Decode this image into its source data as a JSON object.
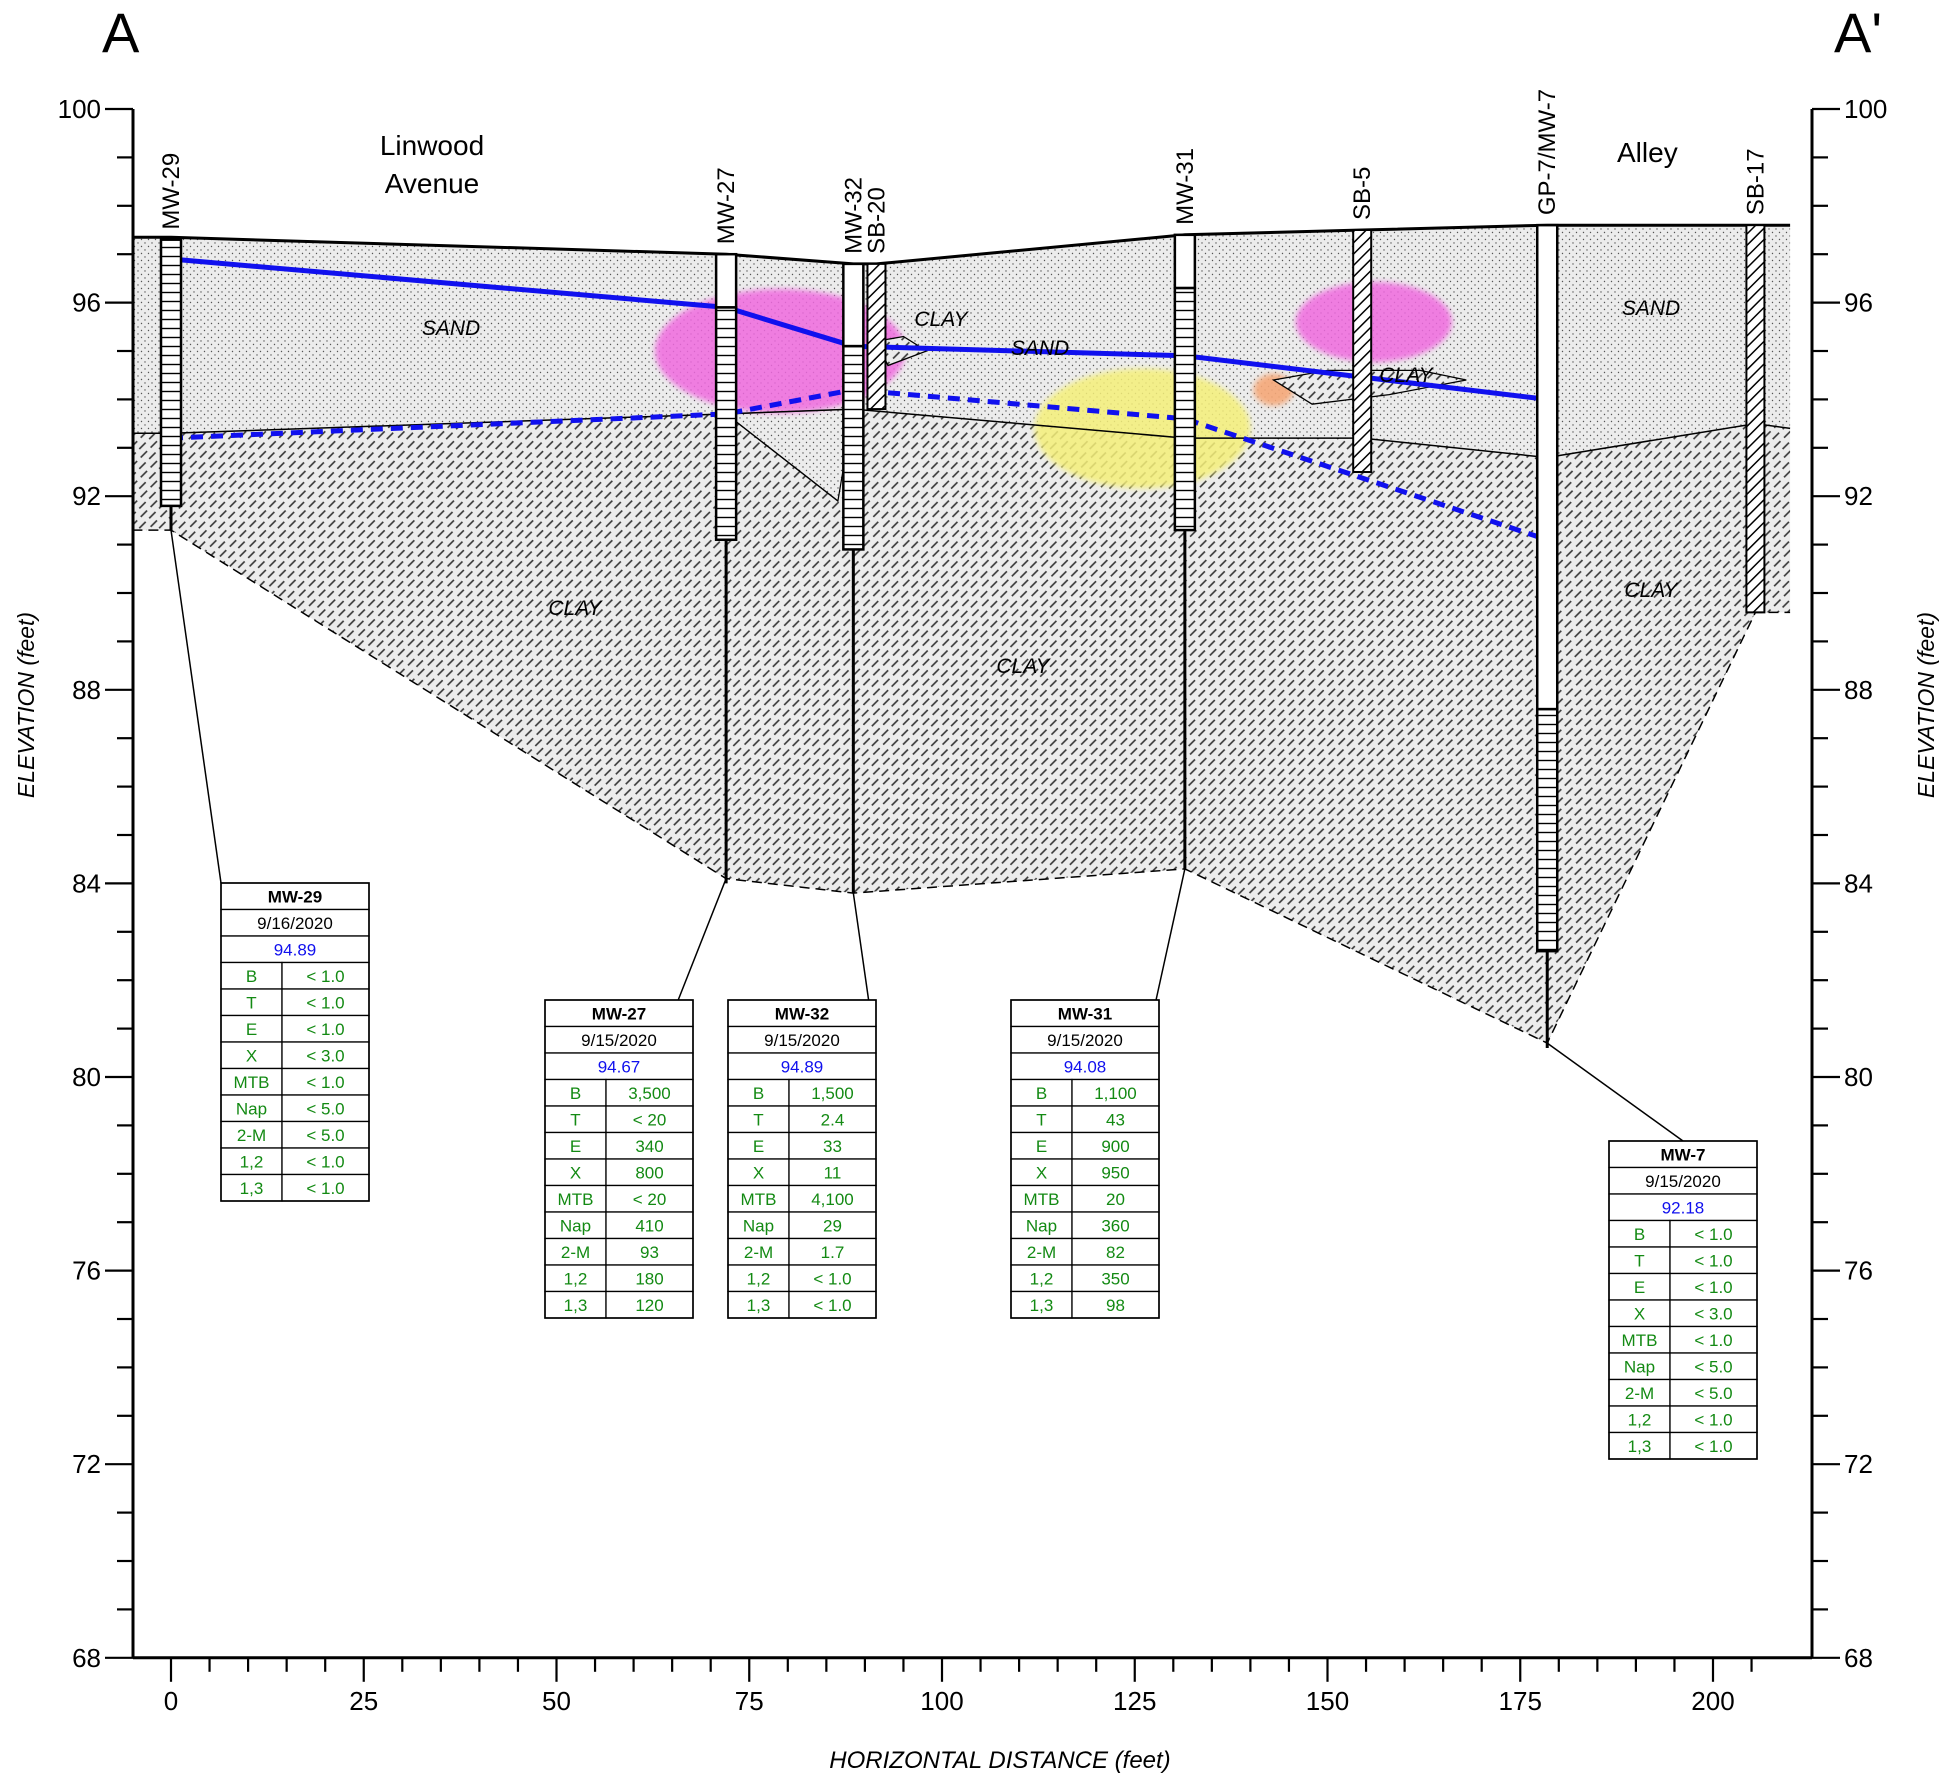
{
  "section": {
    "left_label": "A",
    "right_label": "A'",
    "y_axis_label": "ELEVATION (feet)",
    "x_axis_label": "HORIZONTAL DISTANCE (feet)",
    "y_ticks": [
      "100",
      "96",
      "92",
      "88",
      "84",
      "80",
      "76",
      "72",
      "68"
    ],
    "x_ticks": [
      "0",
      "25",
      "50",
      "75",
      "100",
      "125",
      "150",
      "175",
      "200"
    ],
    "y_range": [
      68,
      100
    ],
    "x_range": [
      -5,
      210
    ]
  },
  "annotations": {
    "street": "Linwood\nAvenue",
    "alley": "Alley",
    "sand_labels": [
      "SAND",
      "SAND",
      "SAND"
    ],
    "clay_labels": [
      "CLAY",
      "CLAY",
      "CLAY",
      "CLAY",
      "CLAY"
    ]
  },
  "borings": [
    {
      "name": "MW-29",
      "x": 0,
      "top": 97.3,
      "bottom": 91.3,
      "screen_top": 97.3,
      "screen_bottom": 91.8,
      "type": "well"
    },
    {
      "name": "MW-27",
      "x": 72,
      "top": 97.0,
      "bottom": 84.0,
      "screen_top": 95.9,
      "screen_bottom": 91.1,
      "type": "well"
    },
    {
      "name": "MW-32",
      "x": 88.5,
      "top": 96.8,
      "bottom": 83.8,
      "screen_top": 95.1,
      "screen_bottom": 90.9,
      "type": "well"
    },
    {
      "name": "SB-20",
      "x": 91.5,
      "top": 96.8,
      "bottom": 93.8,
      "type": "soil"
    },
    {
      "name": "MW-31",
      "x": 131.5,
      "top": 97.4,
      "bottom": 84.3,
      "screen_top": 96.3,
      "screen_bottom": 91.3,
      "type": "well"
    },
    {
      "name": "SB-5",
      "x": 154.5,
      "top": 97.5,
      "bottom": 92.5,
      "type": "soil"
    },
    {
      "name": "GP-7/MW-7",
      "x": 178.5,
      "top": 97.6,
      "bottom": 80.6,
      "screen_top": 87.6,
      "screen_bottom": 82.6,
      "type": "well"
    },
    {
      "name": "SB-17",
      "x": 205.5,
      "top": 97.6,
      "bottom": 89.6,
      "type": "soil"
    }
  ],
  "water_table": {
    "measured": {
      "x": [
        0,
        72,
        88.5,
        131.5,
        178.5
      ],
      "y": [
        96.9,
        95.9,
        95.1,
        94.9,
        94.0
      ]
    },
    "inferred": {
      "x": [
        0,
        72,
        88.5,
        131.5,
        178.5
      ],
      "y": [
        93.2,
        93.7,
        94.2,
        93.6,
        91.1
      ]
    }
  },
  "tables": [
    {
      "well": "MW-29",
      "date": "9/16/2020",
      "gw_elev": "94.89",
      "rows": [
        [
          "B",
          "< 1.0"
        ],
        [
          "T",
          "< 1.0"
        ],
        [
          "E",
          "< 1.0"
        ],
        [
          "X",
          "< 3.0"
        ],
        [
          "MTB",
          "< 1.0"
        ],
        [
          "Nap",
          "< 5.0"
        ],
        [
          "2-M",
          "< 5.0"
        ],
        [
          "1,2",
          "< 1.0"
        ],
        [
          "1,3",
          "< 1.0"
        ]
      ]
    },
    {
      "well": "MW-27",
      "date": "9/15/2020",
      "gw_elev": "94.67",
      "rows": [
        [
          "B",
          "3,500"
        ],
        [
          "T",
          "< 20"
        ],
        [
          "E",
          "340"
        ],
        [
          "X",
          "800"
        ],
        [
          "MTB",
          "< 20"
        ],
        [
          "Nap",
          "410"
        ],
        [
          "2-M",
          "93"
        ],
        [
          "1,2",
          "180"
        ],
        [
          "1,3",
          "120"
        ]
      ]
    },
    {
      "well": "MW-32",
      "date": "9/15/2020",
      "gw_elev": "94.89",
      "rows": [
        [
          "B",
          "1,500"
        ],
        [
          "T",
          "2.4"
        ],
        [
          "E",
          "33"
        ],
        [
          "X",
          "11"
        ],
        [
          "MTB",
          "4,100"
        ],
        [
          "Nap",
          "29"
        ],
        [
          "2-M",
          "1.7"
        ],
        [
          "1,2",
          "< 1.0"
        ],
        [
          "1,3",
          "< 1.0"
        ]
      ]
    },
    {
      "well": "MW-31",
      "date": "9/15/2020",
      "gw_elev": "94.08",
      "rows": [
        [
          "B",
          "1,100"
        ],
        [
          "T",
          "43"
        ],
        [
          "E",
          "900"
        ],
        [
          "X",
          "950"
        ],
        [
          "MTB",
          "20"
        ],
        [
          "Nap",
          "360"
        ],
        [
          "2-M",
          "82"
        ],
        [
          "1,2",
          "350"
        ],
        [
          "1,3",
          "98"
        ]
      ]
    },
    {
      "well": "MW-7",
      "date": "9/15/2020",
      "gw_elev": "92.18",
      "rows": [
        [
          "B",
          "< 1.0"
        ],
        [
          "T",
          "< 1.0"
        ],
        [
          "E",
          "< 1.0"
        ],
        [
          "X",
          "< 3.0"
        ],
        [
          "MTB",
          "< 1.0"
        ],
        [
          "Nap",
          "< 5.0"
        ],
        [
          "2-M",
          "< 5.0"
        ],
        [
          "1,2",
          "< 1.0"
        ],
        [
          "1,3",
          "< 1.0"
        ]
      ]
    }
  ],
  "colors": {
    "water_table": "#1010ee",
    "plume_magenta": "#f06adf",
    "plume_yellow": "#f5f07a",
    "plume_orange": "#f5a878",
    "analyte_text": "#138a13",
    "gw_elev_text": "#1010ee"
  }
}
